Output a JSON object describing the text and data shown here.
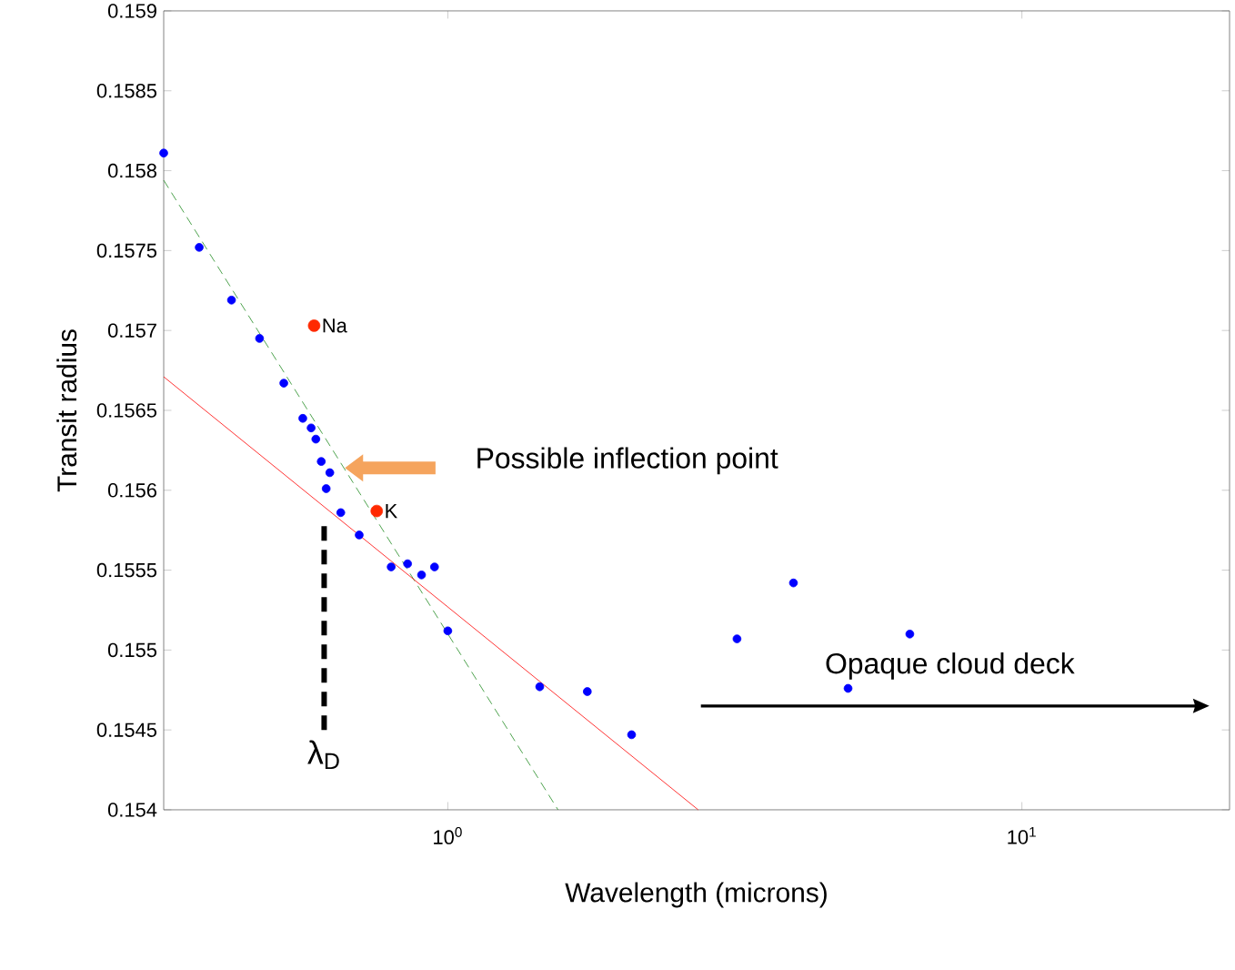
{
  "chart_data": {
    "type": "scatter",
    "xlabel": "Wavelength (microns)",
    "ylabel": "Transit radius",
    "log": "x",
    "grid": false,
    "xlim": [
      0.32,
      23
    ],
    "ylim": [
      0.154,
      0.159
    ],
    "xticks": [
      {
        "value": 1,
        "label": "10$^{0}$"
      },
      {
        "value": 10,
        "label": "10$^{1}$"
      }
    ],
    "yticks": [
      0.154,
      0.1545,
      0.155,
      0.1555,
      0.156,
      0.1565,
      0.157,
      0.1575,
      0.158,
      0.1585,
      0.159
    ],
    "series": [
      {
        "marker": "circle",
        "color": "#0000ff",
        "x": [
          0.32,
          0.369,
          0.42,
          0.47,
          0.518,
          0.559,
          0.578,
          0.589,
          0.602,
          0.623,
          0.614,
          0.651,
          0.701,
          0.797,
          0.851,
          0.9,
          0.948,
          1.0,
          1.446,
          1.75,
          2.09,
          3.19,
          4.0,
          4.98,
          6.38
        ],
        "values": [
          0.15811,
          0.15752,
          0.15719,
          0.15695,
          0.15667,
          0.15645,
          0.15639,
          0.15632,
          0.15618,
          0.15611,
          0.15601,
          0.15586,
          0.15572,
          0.15552,
          0.15554,
          0.15547,
          0.15552,
          0.15512,
          0.15477,
          0.15474,
          0.15447,
          0.15507,
          0.15542,
          0.15476,
          0.1551
        ]
      },
      {
        "marker": "circle",
        "color": "#ff2a00",
        "x": [
          0.585,
          0.752
        ],
        "values": [
          0.15703,
          0.15587
        ]
      },
      {
        "type": "line",
        "marker": "none",
        "color": "#228b22",
        "line_style": "dashed",
        "x": [
          0.32,
          1.556
        ],
        "values": [
          0.15794,
          0.154
        ]
      },
      {
        "type": "line",
        "marker": "none",
        "color": "#ff0000",
        "line_style": "solid",
        "x": [
          0.32,
          2.73
        ],
        "values": [
          0.15671,
          0.154
        ]
      }
    ],
    "ref_lines": [
      {
        "axis": "x",
        "value": 0.609,
        "label": "λ$_{D}$",
        "color": "#000000",
        "line_style": "dashed"
      }
    ],
    "annotations": [
      {
        "text": "Na",
        "x": 0.585,
        "y": 0.15703
      },
      {
        "text": "K",
        "x": 0.752,
        "y": 0.15587
      },
      "Possible inflection point",
      "Opaque cloud deck"
    ]
  }
}
